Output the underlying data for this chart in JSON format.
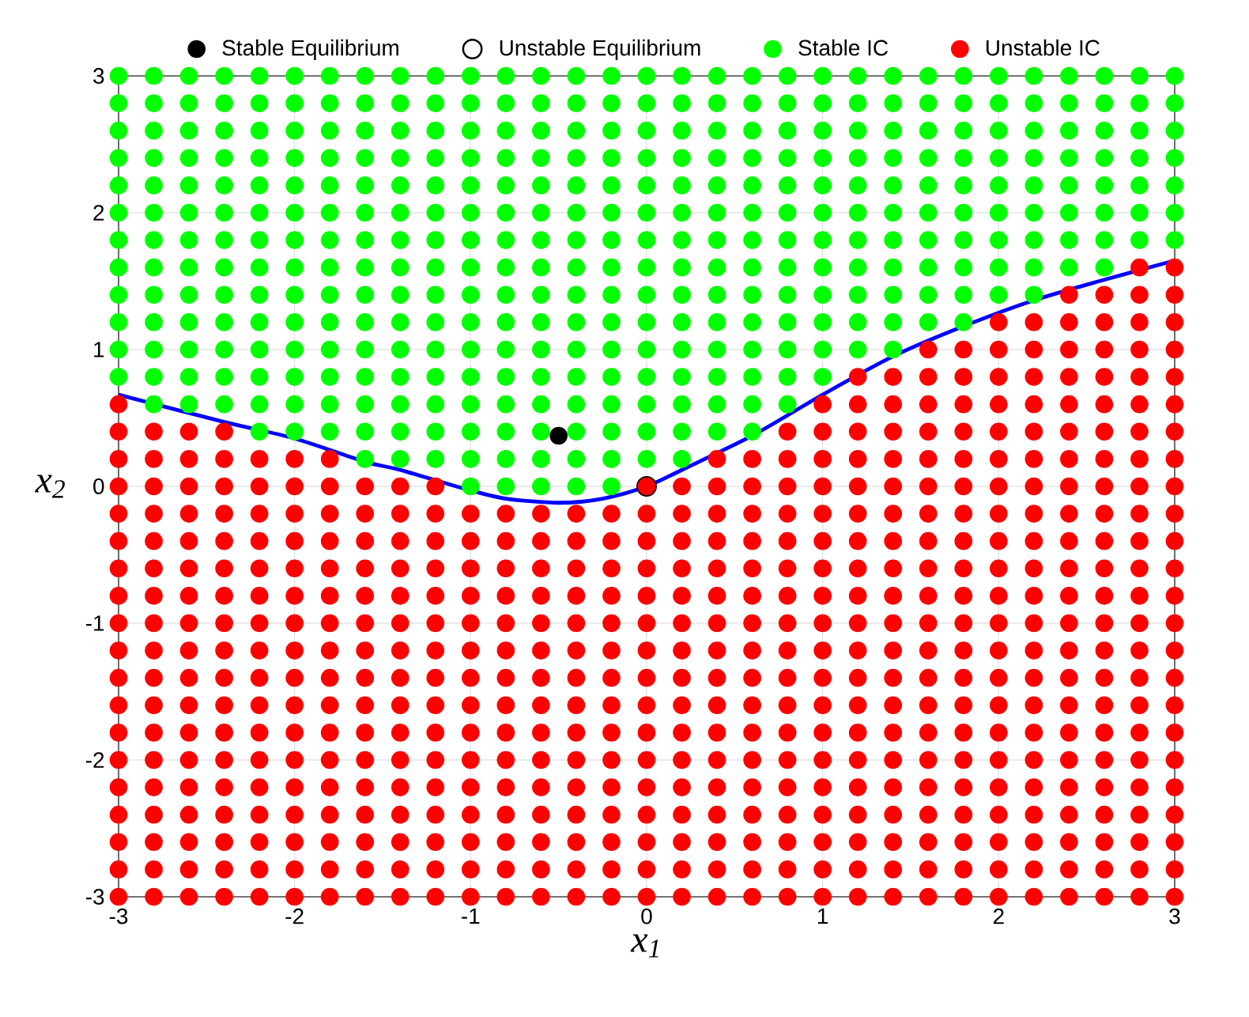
{
  "chart_data": {
    "type": "scatter",
    "xlabel": "x$_{1}$",
    "ylabel": "x$_{2}$",
    "xlim": [
      -3,
      3
    ],
    "ylim": [
      -3,
      3
    ],
    "xticks": [
      -3,
      -2,
      -1,
      0,
      1,
      2,
      3
    ],
    "yticks": [
      -3,
      -2,
      -1,
      0,
      1,
      2,
      3
    ],
    "grid": true,
    "legend": "top",
    "series": [
      {
        "name": "Stable Equilibrium",
        "marker": "circle",
        "color": "#000000",
        "x": [
          -0.5
        ],
        "values": [
          0.37
        ]
      },
      {
        "name": "Unstable Equilibrium",
        "marker": "circle",
        "color": "#ffffff",
        "x": [
          0
        ],
        "values": [
          0
        ]
      },
      {
        "name": "Stable IC",
        "marker": "circle",
        "color": "#00ff00",
        "x": [
          -3,
          -3,
          -3,
          -3,
          -3,
          -3,
          -3,
          -3,
          -3,
          -3,
          -3,
          -3,
          -2.8,
          -2.8,
          -2.8,
          -2.8,
          -2.8,
          -2.8,
          -2.8,
          -2.8,
          -2.8,
          -2.8,
          -2.8,
          -2.8,
          -2.8,
          -2.6,
          -2.6,
          -2.6,
          -2.6,
          -2.6,
          -2.6,
          -2.6,
          -2.6,
          -2.6,
          -2.6,
          -2.6,
          -2.6,
          -2.6,
          -2.4,
          -2.4,
          -2.4,
          -2.4,
          -2.4,
          -2.4,
          -2.4,
          -2.4,
          -2.4,
          -2.4,
          -2.4,
          -2.4,
          -2.4,
          -2.2,
          -2.2,
          -2.2,
          -2.2,
          -2.2,
          -2.2,
          -2.2,
          -2.2,
          -2.2,
          -2.2,
          -2.2,
          -2.2,
          -2.2,
          -2.2,
          -2,
          -2,
          -2,
          -2,
          -2,
          -2,
          -2,
          -2,
          -2,
          -2,
          -2,
          -2,
          -2,
          -2,
          -1.8,
          -1.8,
          -1.8,
          -1.8,
          -1.8,
          -1.8,
          -1.8,
          -1.8,
          -1.8,
          -1.8,
          -1.8,
          -1.8,
          -1.8,
          -1.8,
          -1.6,
          -1.6,
          -1.6,
          -1.6,
          -1.6,
          -1.6,
          -1.6,
          -1.6,
          -1.6,
          -1.6,
          -1.6,
          -1.6,
          -1.6,
          -1.6,
          -1.6,
          -1.4,
          -1.4,
          -1.4,
          -1.4,
          -1.4,
          -1.4,
          -1.4,
          -1.4,
          -1.4,
          -1.4,
          -1.4,
          -1.4,
          -1.4,
          -1.4,
          -1.4,
          -1.2,
          -1.2,
          -1.2,
          -1.2,
          -1.2,
          -1.2,
          -1.2,
          -1.2,
          -1.2,
          -1.2,
          -1.2,
          -1.2,
          -1.2,
          -1.2,
          -1.2,
          -1,
          -1,
          -1,
          -1,
          -1,
          -1,
          -1,
          -1,
          -1,
          -1,
          -1,
          -1,
          -1,
          -1,
          -1,
          -1,
          -0.8,
          -0.8,
          -0.8,
          -0.8,
          -0.8,
          -0.8,
          -0.8,
          -0.8,
          -0.8,
          -0.8,
          -0.8,
          -0.8,
          -0.8,
          -0.8,
          -0.8,
          -0.8,
          -0.6,
          -0.6,
          -0.6,
          -0.6,
          -0.6,
          -0.6,
          -0.6,
          -0.6,
          -0.6,
          -0.6,
          -0.6,
          -0.6,
          -0.6,
          -0.6,
          -0.6,
          -0.6,
          -0.4,
          -0.4,
          -0.4,
          -0.4,
          -0.4,
          -0.4,
          -0.4,
          -0.4,
          -0.4,
          -0.4,
          -0.4,
          -0.4,
          -0.4,
          -0.4,
          -0.4,
          -0.4,
          -0.2,
          -0.2,
          -0.2,
          -0.2,
          -0.2,
          -0.2,
          -0.2,
          -0.2,
          -0.2,
          -0.2,
          -0.2,
          -0.2,
          -0.2,
          -0.2,
          -0.2,
          -0.2,
          0,
          0,
          0,
          0,
          0,
          0,
          0,
          0,
          0,
          0,
          0,
          0,
          0,
          0,
          0,
          0.2,
          0.2,
          0.2,
          0.2,
          0.2,
          0.2,
          0.2,
          0.2,
          0.2,
          0.2,
          0.2,
          0.2,
          0.2,
          0.2,
          0.2,
          0.4,
          0.4,
          0.4,
          0.4,
          0.4,
          0.4,
          0.4,
          0.4,
          0.4,
          0.4,
          0.4,
          0.4,
          0.4,
          0.4,
          0.6,
          0.6,
          0.6,
          0.6,
          0.6,
          0.6,
          0.6,
          0.6,
          0.6,
          0.6,
          0.6,
          0.6,
          0.6,
          0.6,
          0.8,
          0.8,
          0.8,
          0.8,
          0.8,
          0.8,
          0.8,
          0.8,
          0.8,
          0.8,
          0.8,
          0.8,
          0.8,
          1,
          1,
          1,
          1,
          1,
          1,
          1,
          1,
          1,
          1,
          1,
          1,
          1.2,
          1.2,
          1.2,
          1.2,
          1.2,
          1.2,
          1.2,
          1.2,
          1.2,
          1.2,
          1.2,
          1.4,
          1.4,
          1.4,
          1.4,
          1.4,
          1.4,
          1.4,
          1.4,
          1.4,
          1.4,
          1.4,
          1.6,
          1.6,
          1.6,
          1.6,
          1.6,
          1.6,
          1.6,
          1.6,
          1.6,
          1.6,
          1.8,
          1.8,
          1.8,
          1.8,
          1.8,
          1.8,
          1.8,
          1.8,
          1.8,
          1.8,
          2,
          2,
          2,
          2,
          2,
          2,
          2,
          2,
          2,
          2.2,
          2.2,
          2.2,
          2.2,
          2.2,
          2.2,
          2.2,
          2.2,
          2.2,
          2.4,
          2.4,
          2.4,
          2.4,
          2.4,
          2.4,
          2.4,
          2.4,
          2.6,
          2.6,
          2.6,
          2.6,
          2.6,
          2.6,
          2.6,
          2.6,
          2.8,
          2.8,
          2.8,
          2.8,
          2.8,
          2.8,
          2.8,
          3,
          3,
          3,
          3,
          3,
          3,
          3
        ],
        "values": [
          0.8,
          1,
          1.2,
          1.4,
          1.6,
          1.8,
          2,
          2.2,
          2.4,
          2.6,
          2.8,
          3,
          0.6,
          0.8,
          1,
          1.2,
          1.4,
          1.6,
          1.8,
          2,
          2.2,
          2.4,
          2.6,
          2.8,
          3,
          0.6,
          0.8,
          1,
          1.2,
          1.4,
          1.6,
          1.8,
          2,
          2.2,
          2.4,
          2.6,
          2.8,
          3,
          0.6,
          0.8,
          1,
          1.2,
          1.4,
          1.6,
          1.8,
          2,
          2.2,
          2.4,
          2.6,
          2.8,
          3,
          0.4,
          0.6,
          0.8,
          1,
          1.2,
          1.4,
          1.6,
          1.8,
          2,
          2.2,
          2.4,
          2.6,
          2.8,
          3,
          0.4,
          0.6,
          0.8,
          1,
          1.2,
          1.4,
          1.6,
          1.8,
          2,
          2.2,
          2.4,
          2.6,
          2.8,
          3,
          0.4,
          0.6,
          0.8,
          1,
          1.2,
          1.4,
          1.6,
          1.8,
          2,
          2.2,
          2.4,
          2.6,
          2.8,
          3,
          0.2,
          0.4,
          0.6,
          0.8,
          1,
          1.2,
          1.4,
          1.6,
          1.8,
          2,
          2.2,
          2.4,
          2.6,
          2.8,
          3,
          0.2,
          0.4,
          0.6,
          0.8,
          1,
          1.2,
          1.4,
          1.6,
          1.8,
          2,
          2.2,
          2.4,
          2.6,
          2.8,
          3,
          0.2,
          0.4,
          0.6,
          0.8,
          1,
          1.2,
          1.4,
          1.6,
          1.8,
          2,
          2.2,
          2.4,
          2.6,
          2.8,
          3,
          0,
          0.2,
          0.4,
          0.6,
          0.8,
          1,
          1.2,
          1.4,
          1.6,
          1.8,
          2,
          2.2,
          2.4,
          2.6,
          2.8,
          3,
          0,
          0.2,
          0.4,
          0.6,
          0.8,
          1,
          1.2,
          1.4,
          1.6,
          1.8,
          2,
          2.2,
          2.4,
          2.6,
          2.8,
          3,
          0,
          0.2,
          0.4,
          0.6,
          0.8,
          1,
          1.2,
          1.4,
          1.6,
          1.8,
          2,
          2.2,
          2.4,
          2.6,
          2.8,
          3,
          0,
          0.2,
          0.4,
          0.6,
          0.8,
          1,
          1.2,
          1.4,
          1.6,
          1.8,
          2,
          2.2,
          2.4,
          2.6,
          2.8,
          3,
          0,
          0.2,
          0.4,
          0.6,
          0.8,
          1,
          1.2,
          1.4,
          1.6,
          1.8,
          2,
          2.2,
          2.4,
          2.6,
          2.8,
          3,
          0.2,
          0.4,
          0.6,
          0.8,
          1,
          1.2,
          1.4,
          1.6,
          1.8,
          2,
          2.2,
          2.4,
          2.6,
          2.8,
          3,
          0.2,
          0.4,
          0.6,
          0.8,
          1,
          1.2,
          1.4,
          1.6,
          1.8,
          2,
          2.2,
          2.4,
          2.6,
          2.8,
          3,
          0.4,
          0.6,
          0.8,
          1,
          1.2,
          1.4,
          1.6,
          1.8,
          2,
          2.2,
          2.4,
          2.6,
          2.8,
          3,
          0.4,
          0.6,
          0.8,
          1,
          1.2,
          1.4,
          1.6,
          1.8,
          2,
          2.2,
          2.4,
          2.6,
          2.8,
          3,
          0.6,
          0.8,
          1,
          1.2,
          1.4,
          1.6,
          1.8,
          2,
          2.2,
          2.4,
          2.6,
          2.8,
          3,
          0.8,
          1,
          1.2,
          1.4,
          1.6,
          1.8,
          2,
          2.2,
          2.4,
          2.6,
          2.8,
          3,
          1,
          1.2,
          1.4,
          1.6,
          1.8,
          2,
          2.2,
          2.4,
          2.6,
          2.8,
          3,
          1,
          1.2,
          1.4,
          1.6,
          1.8,
          2,
          2.2,
          2.4,
          2.6,
          2.8,
          3,
          1.2,
          1.4,
          1.6,
          1.8,
          2,
          2.2,
          2.4,
          2.6,
          2.8,
          3,
          1.2,
          1.4,
          1.6,
          1.8,
          2,
          2.2,
          2.4,
          2.6,
          2.8,
          3,
          1.4,
          1.6,
          1.8,
          2,
          2.2,
          2.4,
          2.6,
          2.8,
          3,
          1.4,
          1.6,
          1.8,
          2,
          2.2,
          2.4,
          2.6,
          2.8,
          3,
          1.6,
          1.8,
          2,
          2.2,
          2.4,
          2.6,
          2.8,
          3,
          1.6,
          1.8,
          2,
          2.2,
          2.4,
          2.6,
          2.8,
          3,
          1.8,
          2,
          2.2,
          2.4,
          2.6,
          2.8,
          3,
          1.8,
          2,
          2.2,
          2.4,
          2.6,
          2.8,
          3
        ]
      },
      {
        "name": "Unstable IC",
        "marker": "circle",
        "color": "#ff0000",
        "x": [
          -3,
          -3,
          -3,
          -3,
          -3,
          -3,
          -3,
          -3,
          -3,
          -3,
          -3,
          -3,
          -3,
          -3,
          -3,
          -3,
          -3,
          -3,
          -3,
          -2.8,
          -2.8,
          -2.8,
          -2.8,
          -2.8,
          -2.8,
          -2.8,
          -2.8,
          -2.8,
          -2.8,
          -2.8,
          -2.8,
          -2.8,
          -2.8,
          -2.8,
          -2.8,
          -2.8,
          -2.8,
          -2.6,
          -2.6,
          -2.6,
          -2.6,
          -2.6,
          -2.6,
          -2.6,
          -2.6,
          -2.6,
          -2.6,
          -2.6,
          -2.6,
          -2.6,
          -2.6,
          -2.6,
          -2.6,
          -2.6,
          -2.6,
          -2.4,
          -2.4,
          -2.4,
          -2.4,
          -2.4,
          -2.4,
          -2.4,
          -2.4,
          -2.4,
          -2.4,
          -2.4,
          -2.4,
          -2.4,
          -2.4,
          -2.4,
          -2.4,
          -2.4,
          -2.4,
          -2.2,
          -2.2,
          -2.2,
          -2.2,
          -2.2,
          -2.2,
          -2.2,
          -2.2,
          -2.2,
          -2.2,
          -2.2,
          -2.2,
          -2.2,
          -2.2,
          -2.2,
          -2.2,
          -2.2,
          -2,
          -2,
          -2,
          -2,
          -2,
          -2,
          -2,
          -2,
          -2,
          -2,
          -2,
          -2,
          -2,
          -2,
          -2,
          -2,
          -2,
          -1.8,
          -1.8,
          -1.8,
          -1.8,
          -1.8,
          -1.8,
          -1.8,
          -1.8,
          -1.8,
          -1.8,
          -1.8,
          -1.8,
          -1.8,
          -1.8,
          -1.8,
          -1.8,
          -1.8,
          -1.6,
          -1.6,
          -1.6,
          -1.6,
          -1.6,
          -1.6,
          -1.6,
          -1.6,
          -1.6,
          -1.6,
          -1.6,
          -1.6,
          -1.6,
          -1.6,
          -1.6,
          -1.6,
          -1.4,
          -1.4,
          -1.4,
          -1.4,
          -1.4,
          -1.4,
          -1.4,
          -1.4,
          -1.4,
          -1.4,
          -1.4,
          -1.4,
          -1.4,
          -1.4,
          -1.4,
          -1.4,
          -1.2,
          -1.2,
          -1.2,
          -1.2,
          -1.2,
          -1.2,
          -1.2,
          -1.2,
          -1.2,
          -1.2,
          -1.2,
          -1.2,
          -1.2,
          -1.2,
          -1.2,
          -1.2,
          -1,
          -1,
          -1,
          -1,
          -1,
          -1,
          -1,
          -1,
          -1,
          -1,
          -1,
          -1,
          -1,
          -1,
          -1,
          -0.8,
          -0.8,
          -0.8,
          -0.8,
          -0.8,
          -0.8,
          -0.8,
          -0.8,
          -0.8,
          -0.8,
          -0.8,
          -0.8,
          -0.8,
          -0.8,
          -0.8,
          -0.6,
          -0.6,
          -0.6,
          -0.6,
          -0.6,
          -0.6,
          -0.6,
          -0.6,
          -0.6,
          -0.6,
          -0.6,
          -0.6,
          -0.6,
          -0.6,
          -0.6,
          -0.4,
          -0.4,
          -0.4,
          -0.4,
          -0.4,
          -0.4,
          -0.4,
          -0.4,
          -0.4,
          -0.4,
          -0.4,
          -0.4,
          -0.4,
          -0.4,
          -0.4,
          -0.2,
          -0.2,
          -0.2,
          -0.2,
          -0.2,
          -0.2,
          -0.2,
          -0.2,
          -0.2,
          -0.2,
          -0.2,
          -0.2,
          -0.2,
          -0.2,
          -0.2,
          0,
          0,
          0,
          0,
          0,
          0,
          0,
          0,
          0,
          0,
          0,
          0,
          0,
          0,
          0,
          0,
          0.2,
          0.2,
          0.2,
          0.2,
          0.2,
          0.2,
          0.2,
          0.2,
          0.2,
          0.2,
          0.2,
          0.2,
          0.2,
          0.2,
          0.2,
          0.2,
          0.4,
          0.4,
          0.4,
          0.4,
          0.4,
          0.4,
          0.4,
          0.4,
          0.4,
          0.4,
          0.4,
          0.4,
          0.4,
          0.4,
          0.4,
          0.4,
          0.4,
          0.6,
          0.6,
          0.6,
          0.6,
          0.6,
          0.6,
          0.6,
          0.6,
          0.6,
          0.6,
          0.6,
          0.6,
          0.6,
          0.6,
          0.6,
          0.6,
          0.6,
          0.8,
          0.8,
          0.8,
          0.8,
          0.8,
          0.8,
          0.8,
          0.8,
          0.8,
          0.8,
          0.8,
          0.8,
          0.8,
          0.8,
          0.8,
          0.8,
          0.8,
          0.8,
          1,
          1,
          1,
          1,
          1,
          1,
          1,
          1,
          1,
          1,
          1,
          1,
          1,
          1,
          1,
          1,
          1,
          1,
          1,
          1.2,
          1.2,
          1.2,
          1.2,
          1.2,
          1.2,
          1.2,
          1.2,
          1.2,
          1.2,
          1.2,
          1.2,
          1.2,
          1.2,
          1.2,
          1.2,
          1.2,
          1.2,
          1.2,
          1.2,
          1.4,
          1.4,
          1.4,
          1.4,
          1.4,
          1.4,
          1.4,
          1.4,
          1.4,
          1.4,
          1.4,
          1.4,
          1.4,
          1.4,
          1.4,
          1.4,
          1.4,
          1.4,
          1.4,
          1.4,
          1.6,
          1.6,
          1.6,
          1.6,
          1.6,
          1.6,
          1.6,
          1.6,
          1.6,
          1.6,
          1.6,
          1.6,
          1.6,
          1.6,
          1.6,
          1.6,
          1.6,
          1.6,
          1.6,
          1.6,
          1.6,
          1.8,
          1.8,
          1.8,
          1.8,
          1.8,
          1.8,
          1.8,
          1.8,
          1.8,
          1.8,
          1.8,
          1.8,
          1.8,
          1.8,
          1.8,
          1.8,
          1.8,
          1.8,
          1.8,
          1.8,
          1.8,
          2,
          2,
          2,
          2,
          2,
          2,
          2,
          2,
          2,
          2,
          2,
          2,
          2,
          2,
          2,
          2,
          2,
          2,
          2,
          2,
          2,
          2,
          2.2,
          2.2,
          2.2,
          2.2,
          2.2,
          2.2,
          2.2,
          2.2,
          2.2,
          2.2,
          2.2,
          2.2,
          2.2,
          2.2,
          2.2,
          2.2,
          2.2,
          2.2,
          2.2,
          2.2,
          2.2,
          2.2,
          2.4,
          2.4,
          2.4,
          2.4,
          2.4,
          2.4,
          2.4,
          2.4,
          2.4,
          2.4,
          2.4,
          2.4,
          2.4,
          2.4,
          2.4,
          2.4,
          2.4,
          2.4,
          2.4,
          2.4,
          2.4,
          2.4,
          2.4,
          2.6,
          2.6,
          2.6,
          2.6,
          2.6,
          2.6,
          2.6,
          2.6,
          2.6,
          2.6,
          2.6,
          2.6,
          2.6,
          2.6,
          2.6,
          2.6,
          2.6,
          2.6,
          2.6,
          2.6,
          2.6,
          2.6,
          2.6,
          2.8,
          2.8,
          2.8,
          2.8,
          2.8,
          2.8,
          2.8,
          2.8,
          2.8,
          2.8,
          2.8,
          2.8,
          2.8,
          2.8,
          2.8,
          2.8,
          2.8,
          2.8,
          2.8,
          2.8,
          2.8,
          2.8,
          2.8,
          2.8,
          3,
          3,
          3,
          3,
          3,
          3,
          3,
          3,
          3,
          3,
          3,
          3,
          3,
          3,
          3,
          3,
          3,
          3,
          3,
          3,
          3,
          3,
          3,
          3
        ],
        "values": [
          -3,
          -2.8,
          -2.6,
          -2.4,
          -2.2,
          -2,
          -1.8,
          -1.6,
          -1.4,
          -1.2,
          -1,
          -0.8,
          -0.6,
          -0.4,
          -0.2,
          0,
          0.2,
          0.4,
          0.6,
          -3,
          -2.8,
          -2.6,
          -2.4,
          -2.2,
          -2,
          -1.8,
          -1.6,
          -1.4,
          -1.2,
          -1,
          -0.8,
          -0.6,
          -0.4,
          -0.2,
          0,
          0.2,
          0.4,
          -3,
          -2.8,
          -2.6,
          -2.4,
          -2.2,
          -2,
          -1.8,
          -1.6,
          -1.4,
          -1.2,
          -1,
          -0.8,
          -0.6,
          -0.4,
          -0.2,
          0,
          0.2,
          0.4,
          -3,
          -2.8,
          -2.6,
          -2.4,
          -2.2,
          -2,
          -1.8,
          -1.6,
          -1.4,
          -1.2,
          -1,
          -0.8,
          -0.6,
          -0.4,
          -0.2,
          0,
          0.2,
          0.4,
          -3,
          -2.8,
          -2.6,
          -2.4,
          -2.2,
          -2,
          -1.8,
          -1.6,
          -1.4,
          -1.2,
          -1,
          -0.8,
          -0.6,
          -0.4,
          -0.2,
          0,
          0.2,
          -3,
          -2.8,
          -2.6,
          -2.4,
          -2.2,
          -2,
          -1.8,
          -1.6,
          -1.4,
          -1.2,
          -1,
          -0.8,
          -0.6,
          -0.4,
          -0.2,
          0,
          0.2,
          -3,
          -2.8,
          -2.6,
          -2.4,
          -2.2,
          -2,
          -1.8,
          -1.6,
          -1.4,
          -1.2,
          -1,
          -0.8,
          -0.6,
          -0.4,
          -0.2,
          0,
          0.2,
          -3,
          -2.8,
          -2.6,
          -2.4,
          -2.2,
          -2,
          -1.8,
          -1.6,
          -1.4,
          -1.2,
          -1,
          -0.8,
          -0.6,
          -0.4,
          -0.2,
          0,
          -3,
          -2.8,
          -2.6,
          -2.4,
          -2.2,
          -2,
          -1.8,
          -1.6,
          -1.4,
          -1.2,
          -1,
          -0.8,
          -0.6,
          -0.4,
          -0.2,
          0,
          -3,
          -2.8,
          -2.6,
          -2.4,
          -2.2,
          -2,
          -1.8,
          -1.6,
          -1.4,
          -1.2,
          -1,
          -0.8,
          -0.6,
          -0.4,
          -0.2,
          0,
          -3,
          -2.8,
          -2.6,
          -2.4,
          -2.2,
          -2,
          -1.8,
          -1.6,
          -1.4,
          -1.2,
          -1,
          -0.8,
          -0.6,
          -0.4,
          -0.2,
          -3,
          -2.8,
          -2.6,
          -2.4,
          -2.2,
          -2,
          -1.8,
          -1.6,
          -1.4,
          -1.2,
          -1,
          -0.8,
          -0.6,
          -0.4,
          -0.2,
          -3,
          -2.8,
          -2.6,
          -2.4,
          -2.2,
          -2,
          -1.8,
          -1.6,
          -1.4,
          -1.2,
          -1,
          -0.8,
          -0.6,
          -0.4,
          -0.2,
          -3,
          -2.8,
          -2.6,
          -2.4,
          -2.2,
          -2,
          -1.8,
          -1.6,
          -1.4,
          -1.2,
          -1,
          -0.8,
          -0.6,
          -0.4,
          -0.2,
          -3,
          -2.8,
          -2.6,
          -2.4,
          -2.2,
          -2,
          -1.8,
          -1.6,
          -1.4,
          -1.2,
          -1,
          -0.8,
          -0.6,
          -0.4,
          -0.2,
          -3,
          -2.8,
          -2.6,
          -2.4,
          -2.2,
          -2,
          -1.8,
          -1.6,
          -1.4,
          -1.2,
          -1,
          -0.8,
          -0.6,
          -0.4,
          -0.2,
          0,
          -3,
          -2.8,
          -2.6,
          -2.4,
          -2.2,
          -2,
          -1.8,
          -1.6,
          -1.4,
          -1.2,
          -1,
          -0.8,
          -0.6,
          -0.4,
          -0.2,
          0,
          -3,
          -2.8,
          -2.6,
          -2.4,
          -2.2,
          -2,
          -1.8,
          -1.6,
          -1.4,
          -1.2,
          -1,
          -0.8,
          -0.6,
          -0.4,
          -0.2,
          0,
          0.2,
          -3,
          -2.8,
          -2.6,
          -2.4,
          -2.2,
          -2,
          -1.8,
          -1.6,
          -1.4,
          -1.2,
          -1,
          -0.8,
          -0.6,
          -0.4,
          -0.2,
          0,
          0.2,
          -3,
          -2.8,
          -2.6,
          -2.4,
          -2.2,
          -2,
          -1.8,
          -1.6,
          -1.4,
          -1.2,
          -1,
          -0.8,
          -0.6,
          -0.4,
          -0.2,
          0,
          0.2,
          0.4,
          -3,
          -2.8,
          -2.6,
          -2.4,
          -2.2,
          -2,
          -1.8,
          -1.6,
          -1.4,
          -1.2,
          -1,
          -0.8,
          -0.6,
          -0.4,
          -0.2,
          0,
          0.2,
          0.4,
          0.6,
          -3,
          -2.8,
          -2.6,
          -2.4,
          -2.2,
          -2,
          -1.8,
          -1.6,
          -1.4,
          -1.2,
          -1,
          -0.8,
          -0.6,
          -0.4,
          -0.2,
          0,
          0.2,
          0.4,
          0.6,
          0.8,
          -3,
          -2.8,
          -2.6,
          -2.4,
          -2.2,
          -2,
          -1.8,
          -1.6,
          -1.4,
          -1.2,
          -1,
          -0.8,
          -0.6,
          -0.4,
          -0.2,
          0,
          0.2,
          0.4,
          0.6,
          0.8,
          -3,
          -2.8,
          -2.6,
          -2.4,
          -2.2,
          -2,
          -1.8,
          -1.6,
          -1.4,
          -1.2,
          -1,
          -0.8,
          -0.6,
          -0.4,
          -0.2,
          0,
          0.2,
          0.4,
          0.6,
          0.8,
          1,
          -3,
          -2.8,
          -2.6,
          -2.4,
          -2.2,
          -2,
          -1.8,
          -1.6,
          -1.4,
          -1.2,
          -1,
          -0.8,
          -0.6,
          -0.4,
          -0.2,
          0,
          0.2,
          0.4,
          0.6,
          0.8,
          1,
          -3,
          -2.8,
          -2.6,
          -2.4,
          -2.2,
          -2,
          -1.8,
          -1.6,
          -1.4,
          -1.2,
          -1,
          -0.8,
          -0.6,
          -0.4,
          -0.2,
          0,
          0.2,
          0.4,
          0.6,
          0.8,
          1,
          1.2,
          -3,
          -2.8,
          -2.6,
          -2.4,
          -2.2,
          -2,
          -1.8,
          -1.6,
          -1.4,
          -1.2,
          -1,
          -0.8,
          -0.6,
          -0.4,
          -0.2,
          0,
          0.2,
          0.4,
          0.6,
          0.8,
          1,
          1.2,
          -3,
          -2.8,
          -2.6,
          -2.4,
          -2.2,
          -2,
          -1.8,
          -1.6,
          -1.4,
          -1.2,
          -1,
          -0.8,
          -0.6,
          -0.4,
          -0.2,
          0,
          0.2,
          0.4,
          0.6,
          0.8,
          1,
          1.2,
          1.4,
          -3,
          -2.8,
          -2.6,
          -2.4,
          -2.2,
          -2,
          -1.8,
          -1.6,
          -1.4,
          -1.2,
          -1,
          -0.8,
          -0.6,
          -0.4,
          -0.2,
          0,
          0.2,
          0.4,
          0.6,
          0.8,
          1,
          1.2,
          1.4,
          -3,
          -2.8,
          -2.6,
          -2.4,
          -2.2,
          -2,
          -1.8,
          -1.6,
          -1.4,
          -1.2,
          -1,
          -0.8,
          -0.6,
          -0.4,
          -0.2,
          0,
          0.2,
          0.4,
          0.6,
          0.8,
          1,
          1.2,
          1.4,
          1.6,
          -3,
          -2.8,
          -2.6,
          -2.4,
          -2.2,
          -2,
          -1.8,
          -1.6,
          -1.4,
          -1.2,
          -1,
          -0.8,
          -0.6,
          -0.4,
          -0.2,
          0,
          0.2,
          0.4,
          0.6,
          0.8,
          1,
          1.2,
          1.4,
          1.6
        ]
      },
      {
        "type": "line",
        "marker": "none",
        "color": "#0000ff",
        "x": [
          -3,
          -2.4,
          -2,
          -1.6,
          -1.4,
          -1,
          -0.8,
          -0.5,
          -0.25,
          0,
          0.2,
          0.6,
          1,
          1.4,
          1.8,
          2.2,
          2.6,
          3
        ],
        "values": [
          0.67,
          0.47,
          0.35,
          0.18,
          0.12,
          -0.03,
          -0.09,
          -0.12,
          -0.09,
          0,
          0.12,
          0.37,
          0.67,
          0.95,
          1.17,
          1.36,
          1.51,
          1.65
        ]
      }
    ]
  }
}
